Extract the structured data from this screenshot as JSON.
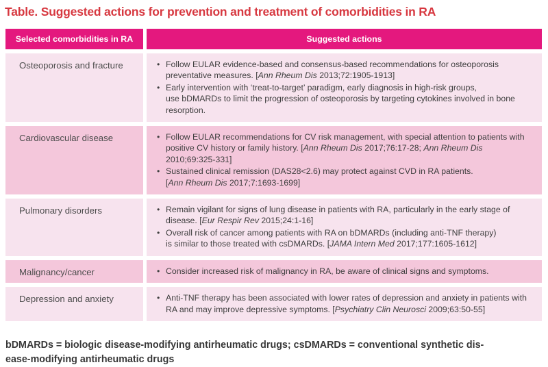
{
  "title": "Table. Suggested actions for prevention and treatment of comorbidities in RA",
  "colors": {
    "title_red": "#D73840",
    "header_magenta": "#E4187E",
    "row_light_pink": "#F7E3EE",
    "row_dark_pink": "#F4C7DB",
    "body_text": "#3F3F3F",
    "footnote_text": "#383838"
  },
  "table": {
    "column_headers": [
      "Selected comorbidities in RA",
      "Suggested actions"
    ],
    "rows": [
      {
        "comorbidity": "Osteoporosis and fracture",
        "actions": [
          {
            "segments": [
              {
                "text": "Follow EULAR evidence-based and consensus-based recommendations for osteoporosis preventative measures. [",
                "italic": false
              },
              {
                "text": "Ann Rheum Dis",
                "italic": true
              },
              {
                "text": " 2013;72:1905-1913]",
                "italic": false
              }
            ]
          },
          {
            "segments": [
              {
                "text": "Early intervention with ‘treat-to-target’ paradigm, early diagnosis in high-risk groups,\nuse bDMARDs to limit the progression of osteoporosis by targeting cytokines involved in bone resorption.",
                "italic": false
              }
            ]
          }
        ]
      },
      {
        "comorbidity": "Cardiovascular disease",
        "actions": [
          {
            "segments": [
              {
                "text": "Follow EULAR recommendations for CV risk management, with special attention to patients with positive CV history or family history. [",
                "italic": false
              },
              {
                "text": "Ann Rheum Dis",
                "italic": true
              },
              {
                "text": " 2017;76:17-28; ",
                "italic": false
              },
              {
                "text": "Ann Rheum Dis",
                "italic": true
              },
              {
                "text": "\n2010;69:325-331]",
                "italic": false
              }
            ]
          },
          {
            "segments": [
              {
                "text": "Sustained clinical remission (DAS28<2.6) may protect against CVD in RA patients.\n[",
                "italic": false
              },
              {
                "text": "Ann Rheum Dis",
                "italic": true
              },
              {
                "text": " 2017;7:1693-1699]",
                "italic": false
              }
            ]
          }
        ]
      },
      {
        "comorbidity": "Pulmonary disorders",
        "actions": [
          {
            "segments": [
              {
                "text": "Remain vigilant for signs of lung disease in patients with RA, particularly in the early stage of disease. [",
                "italic": false
              },
              {
                "text": "Eur Respir Rev",
                "italic": true
              },
              {
                "text": " 2015;24:1-16]",
                "italic": false
              }
            ]
          },
          {
            "segments": [
              {
                "text": "Overall risk of cancer among patients with RA on bDMARDs (including anti-TNF therapy)\nis similar to those treated with csDMARDs. [",
                "italic": false
              },
              {
                "text": "JAMA Intern Med",
                "italic": true
              },
              {
                "text": " 2017;177:1605-1612]",
                "italic": false
              }
            ]
          }
        ]
      },
      {
        "comorbidity": "Malignancy/cancer",
        "actions": [
          {
            "segments": [
              {
                "text": "Consider increased risk of malignancy in RA, be aware of clinical signs and symptoms.",
                "italic": false
              }
            ]
          }
        ]
      },
      {
        "comorbidity": "Depression and anxiety",
        "actions": [
          {
            "segments": [
              {
                "text": "Anti-TNF therapy has been associated with lower rates of depression and anxiety in patients with RA and may improve depressive symptoms. [",
                "italic": false
              },
              {
                "text": "Psychiatry Clin Neurosci",
                "italic": true
              },
              {
                "text": " 2009;63:50-55]",
                "italic": false
              }
            ]
          }
        ]
      }
    ]
  },
  "footnote": "bDMARDs = biologic disease-modifying antirheumatic drugs; csDMARDs = conventional synthetic dis-\nease-modifying antirheumatic drugs"
}
